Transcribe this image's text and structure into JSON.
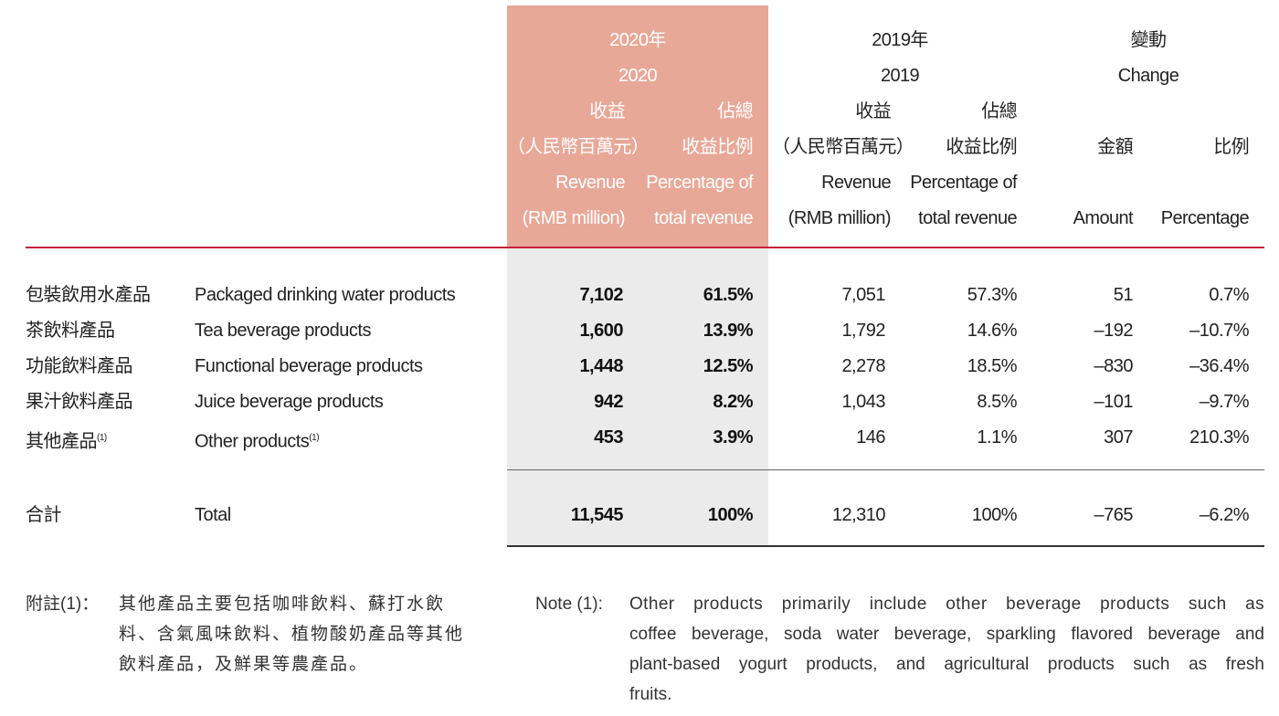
{
  "header": {
    "y2020": {
      "zh_year": "2020年",
      "en_year": "2020",
      "rev_zh1": "收益",
      "rev_zh2": "（人民幣百萬元）",
      "rev_en1": "Revenue",
      "rev_en2": "(RMB million)",
      "pct_zh1": "佔總",
      "pct_zh2": "收益比例",
      "pct_en1": "Percentage of",
      "pct_en2": "total revenue"
    },
    "y2019": {
      "zh_year": "2019年",
      "en_year": "2019",
      "rev_zh1": "收益",
      "rev_zh2": "（人民幣百萬元）",
      "rev_en1": "Revenue",
      "rev_en2": "(RMB million)",
      "pct_zh1": "佔總",
      "pct_zh2": "收益比例",
      "pct_en1": "Percentage of",
      "pct_en2": "total revenue"
    },
    "change": {
      "zh": "變動",
      "en": "Change",
      "amt_zh": "金額",
      "amt_en": "Amount",
      "pct_zh": "比例",
      "pct_en": "Percentage"
    }
  },
  "rows": [
    {
      "zh": "包裝飲用水產品",
      "en": "Packaged drinking water products",
      "rev2020": "7,102",
      "pct2020": "61.5%",
      "rev2019": "7,051",
      "pct2019": "57.3%",
      "amount": "51",
      "change_pct": "0.7%"
    },
    {
      "zh": "茶飲料產品",
      "en": "Tea beverage products",
      "rev2020": "1,600",
      "pct2020": "13.9%",
      "rev2019": "1,792",
      "pct2019": "14.6%",
      "amount": "–192",
      "change_pct": "–10.7%"
    },
    {
      "zh": "功能飲料產品",
      "en": "Functional beverage products",
      "rev2020": "1,448",
      "pct2020": "12.5%",
      "rev2019": "2,278",
      "pct2019": "18.5%",
      "amount": "–830",
      "change_pct": "–36.4%"
    },
    {
      "zh": "果汁飲料產品",
      "en": "Juice beverage products",
      "rev2020": "942",
      "pct2020": "8.2%",
      "rev2019": "1,043",
      "pct2019": "8.5%",
      "amount": "–101",
      "change_pct": "–9.7%"
    },
    {
      "zh": "其他產品",
      "zh_sup": "(1)",
      "en": "Other products",
      "en_sup": "(1)",
      "rev2020": "453",
      "pct2020": "3.9%",
      "rev2019": "146",
      "pct2019": "1.1%",
      "amount": "307",
      "change_pct": "210.3%"
    }
  ],
  "total": {
    "zh": "合計",
    "en": "Total",
    "rev2020": "11,545",
    "pct2020": "100%",
    "rev2019": "12,310",
    "pct2019": "100%",
    "amount": "–765",
    "change_pct": "–6.2%"
  },
  "notes": {
    "zh_label": "附註(1)：",
    "zh_lines": [
      "其他產品主要包括咖啡飲料、蘇打水飲",
      "料、含氣風味飲料、植物酸奶產品等其他",
      "飲料產品，及鮮果等農產品。"
    ],
    "en_label": "Note (1):",
    "en_lines": [
      "Other products primarily include other beverage products such as",
      "coffee beverage, soda water beverage, sparkling flavored beverage and",
      "plant-based yogurt products, and agricultural products such as fresh",
      "fruits."
    ]
  },
  "colors": {
    "highlight_header": "#e8a898",
    "highlight_body": "#ebebeb",
    "rule_red": "#c2233a"
  }
}
